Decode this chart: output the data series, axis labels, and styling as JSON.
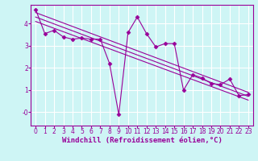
{
  "title": "",
  "xlabel": "Windchill (Refroidissement éolien,°C)",
  "ylabel": "",
  "bg_color": "#cef5f5",
  "grid_color": "#ffffff",
  "line_color": "#990099",
  "xlim": [
    -0.5,
    23.5
  ],
  "ylim": [
    -0.6,
    4.85
  ],
  "yticks": [
    0,
    1,
    2,
    3,
    4
  ],
  "ytick_labels": [
    "-0",
    "1",
    "2",
    "3",
    "4"
  ],
  "xticks": [
    0,
    1,
    2,
    3,
    4,
    5,
    6,
    7,
    8,
    9,
    10,
    11,
    12,
    13,
    14,
    15,
    16,
    17,
    18,
    19,
    20,
    21,
    22,
    23
  ],
  "main_series_x": [
    0,
    1,
    2,
    3,
    4,
    5,
    6,
    7,
    8,
    9,
    10,
    11,
    12,
    13,
    14,
    15,
    16,
    17,
    18,
    19,
    20,
    21,
    22,
    23
  ],
  "main_series_y": [
    4.65,
    3.55,
    3.7,
    3.4,
    3.3,
    3.35,
    3.3,
    3.3,
    2.2,
    -0.1,
    3.6,
    4.3,
    3.55,
    2.95,
    3.1,
    3.1,
    1.0,
    1.7,
    1.55,
    1.3,
    1.25,
    1.5,
    0.75,
    0.8
  ],
  "reg_line1_x": [
    0,
    23
  ],
  "reg_line1_y": [
    4.5,
    0.9
  ],
  "reg_line2_x": [
    0,
    23
  ],
  "reg_line2_y": [
    4.3,
    0.72
  ],
  "reg_line3_x": [
    0,
    23
  ],
  "reg_line3_y": [
    4.1,
    0.55
  ],
  "font_size_xlabel": 6.5,
  "font_size_tick": 5.5,
  "marker": "D",
  "marker_size": 2.5,
  "linewidth": 0.8
}
